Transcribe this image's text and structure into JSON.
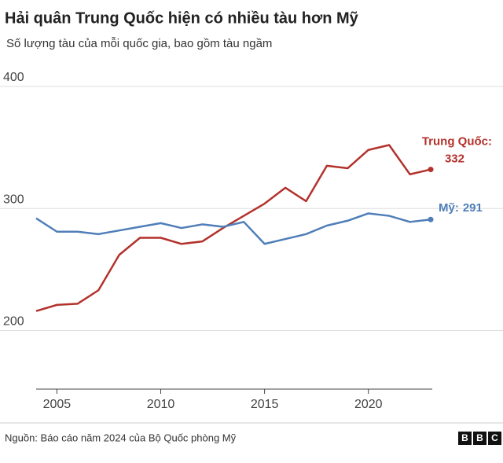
{
  "chart_data": {
    "type": "line",
    "title": "Hải quân Trung Quốc hiện có nhiều tàu hơn Mỹ",
    "subtitle": "Số lượng tàu của mỗi quốc gia, bao gồm tàu ngầm",
    "x": [
      2004,
      2005,
      2006,
      2007,
      2008,
      2009,
      2010,
      2011,
      2012,
      2013,
      2014,
      2015,
      2016,
      2017,
      2018,
      2019,
      2020,
      2021,
      2022,
      2023
    ],
    "series": [
      {
        "name": "Trung Quốc:",
        "color": "#b3322c",
        "values": [
          216,
          221,
          222,
          233,
          262,
          276,
          276,
          271,
          273,
          284,
          294,
          304,
          317,
          306,
          335,
          333,
          348,
          352,
          328,
          332
        ]
      },
      {
        "name": "Mỹ:",
        "color": "#4f7eb8",
        "values": [
          292,
          281,
          281,
          279,
          282,
          285,
          288,
          284,
          287,
          285,
          289,
          271,
          275,
          279,
          286,
          290,
          296,
          294,
          289,
          291
        ]
      }
    ],
    "xlim": [
      2004,
      2023
    ],
    "xticks": [
      2005,
      2010,
      2015,
      2020
    ],
    "ylim": [
      152,
      400
    ],
    "yticks": [
      200,
      300,
      400
    ],
    "grid": true,
    "source": "Nguồn: Báo cáo năm 2024 của Bộ Quốc phòng Mỹ",
    "logo": [
      "B",
      "B",
      "C"
    ]
  }
}
